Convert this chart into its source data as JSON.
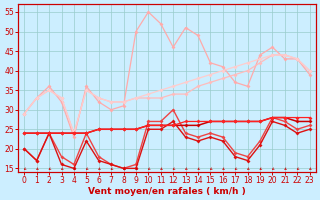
{
  "xlabel": "Vent moyen/en rafales ( km/h )",
  "bg_color": "#cceeff",
  "grid_color": "#99cccc",
  "x": [
    0,
    1,
    2,
    3,
    4,
    5,
    6,
    7,
    8,
    9,
    10,
    11,
    12,
    13,
    14,
    15,
    16,
    17,
    18,
    19,
    20,
    21,
    22,
    23
  ],
  "series": [
    {
      "color": "#ffaaaa",
      "linewidth": 0.9,
      "marker": "D",
      "markersize": 2.0,
      "values": [
        29,
        33,
        36,
        32,
        23,
        36,
        32,
        30,
        31,
        50,
        55,
        52,
        46,
        51,
        49,
        42,
        41,
        37,
        36,
        44,
        46,
        43,
        43,
        39
      ]
    },
    {
      "color": "#ffbbbb",
      "linewidth": 0.9,
      "marker": "D",
      "markersize": 2.0,
      "values": [
        29,
        33,
        35,
        33,
        24,
        35,
        33,
        32,
        32,
        33,
        33,
        33,
        34,
        34,
        36,
        37,
        38,
        39,
        40,
        42,
        44,
        44,
        43,
        40
      ]
    },
    {
      "color": "#ffcccc",
      "linewidth": 0.9,
      "marker": "D",
      "markersize": 2.0,
      "values": [
        29,
        33,
        35,
        33,
        24,
        35,
        33,
        32,
        32,
        33,
        34,
        35,
        36,
        37,
        38,
        39,
        40,
        41,
        42,
        43,
        44,
        44,
        43,
        40
      ]
    },
    {
      "color": "#ee4444",
      "linewidth": 1.0,
      "marker": "D",
      "markersize": 2.0,
      "values": [
        20,
        17,
        24,
        18,
        16,
        24,
        18,
        16,
        15,
        16,
        27,
        27,
        30,
        24,
        23,
        24,
        23,
        19,
        18,
        22,
        28,
        27,
        25,
        26
      ]
    },
    {
      "color": "#cc0000",
      "linewidth": 1.1,
      "marker": "D",
      "markersize": 2.0,
      "values": [
        24,
        24,
        24,
        24,
        24,
        24,
        25,
        25,
        25,
        25,
        26,
        26,
        26,
        26,
        26,
        27,
        27,
        27,
        27,
        27,
        28,
        28,
        27,
        27
      ]
    },
    {
      "color": "#dd1111",
      "linewidth": 1.0,
      "marker": "D",
      "markersize": 2.0,
      "values": [
        20,
        17,
        24,
        16,
        15,
        22,
        17,
        16,
        15,
        15,
        25,
        25,
        27,
        23,
        22,
        23,
        22,
        18,
        17,
        21,
        27,
        26,
        24,
        25
      ]
    },
    {
      "color": "#ff2222",
      "linewidth": 0.9,
      "marker": "D",
      "markersize": 2.0,
      "values": [
        24,
        24,
        24,
        24,
        24,
        24,
        25,
        25,
        25,
        25,
        26,
        26,
        26,
        27,
        27,
        27,
        27,
        27,
        27,
        27,
        28,
        28,
        28,
        28
      ]
    }
  ],
  "ylim": [
    14,
    57
  ],
  "yticks": [
    15,
    20,
    25,
    30,
    35,
    40,
    45,
    50,
    55
  ],
  "xticks": [
    0,
    1,
    2,
    3,
    4,
    5,
    6,
    7,
    8,
    9,
    10,
    11,
    12,
    13,
    14,
    15,
    16,
    17,
    18,
    19,
    20,
    21,
    22,
    23
  ],
  "tick_fontsize": 5.5,
  "axis_fontsize": 6.5,
  "red_color": "#cc0000"
}
